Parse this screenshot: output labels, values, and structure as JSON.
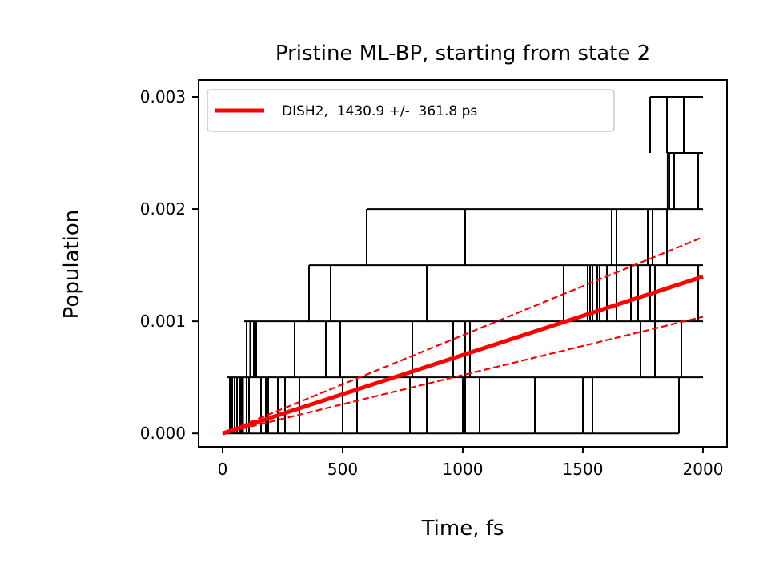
{
  "chart_data": {
    "type": "line",
    "title": "Pristine ML-BP, starting from state 2",
    "xlabel": "Time, fs",
    "ylabel": "Population",
    "xlim": [
      -100,
      2100
    ],
    "ylim": [
      -0.00012,
      0.00315
    ],
    "xticks": [
      0,
      500,
      1000,
      1500,
      2000
    ],
    "xtick_labels": [
      "0",
      "500",
      "1000",
      "1500",
      "2000"
    ],
    "yticks": [
      0.0,
      0.001,
      0.002,
      0.003
    ],
    "ytick_labels": [
      "0.000",
      "0.001",
      "0.002",
      "0.003"
    ],
    "grid": false,
    "legend_position": "top-left",
    "levels": [
      0.0,
      0.0005,
      0.001,
      0.0015,
      0.002,
      0.0025,
      0.003
    ],
    "level_extent_fs": [
      [
        0,
        1900
      ],
      [
        20,
        2000
      ],
      [
        90,
        2000
      ],
      [
        360,
        2000
      ],
      [
        600,
        2000
      ],
      [
        1853,
        2000
      ],
      [
        1780,
        2000
      ]
    ],
    "jump_times_fs": [
      [
        30,
        40,
        50,
        60,
        70,
        75,
        80,
        85,
        100,
        110,
        160,
        180,
        190,
        230,
        260,
        320,
        500,
        560,
        780,
        850,
        1000,
        1010,
        1070,
        1300,
        1500,
        1540,
        1900
      ],
      [
        100,
        115,
        130,
        140,
        300,
        430,
        490,
        790,
        960,
        1010,
        1030,
        1740,
        1800,
        1910
      ],
      [
        360,
        450,
        850,
        1420,
        1520,
        1530,
        1540,
        1560,
        1570,
        1600,
        1640,
        1700,
        1730,
        1780,
        1800,
        1980
      ],
      [
        600,
        1010,
        1620,
        1640,
        1770,
        1790,
        1850
      ],
      [
        1853,
        1860,
        1880,
        1980
      ],
      [
        1780,
        1850,
        1920
      ]
    ],
    "fit": {
      "series": "DISH2,  1430.9 +/-  361.8 ps",
      "x": [
        0,
        2000
      ],
      "y": [
        0,
        0.001398
      ],
      "upper_y": [
        0,
        0.00175
      ],
      "lower_y": [
        0,
        0.00104
      ]
    },
    "colors": {
      "fit": "#ff0000",
      "trajectory": "#000000"
    },
    "legend": {
      "entries": [
        "DISH2,  1430.9 +/-  361.8 ps"
      ]
    }
  }
}
